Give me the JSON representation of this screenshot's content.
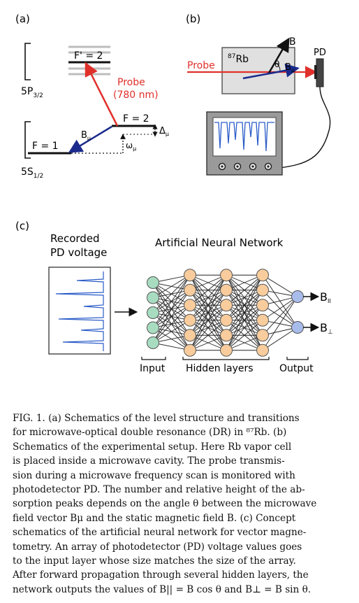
{
  "panel_a": {
    "label": "(a)",
    "upper_state": "5P",
    "upper_sub": "3/2",
    "lower_state": "5S",
    "lower_sub": "1/2",
    "level_fprime": "F' = 2",
    "level_f2": "F = 2",
    "level_f1": "F = 1",
    "probe_label_1": "Probe",
    "probe_label_2": "(780 nm)",
    "b_label": "B",
    "b_sub": "μ",
    "omega_label": "ω",
    "omega_sub": "μ",
    "delta_label": "Δ",
    "delta_sub": "μ"
  },
  "panel_b": {
    "label": "(b)",
    "probe_label": "Probe",
    "rb_sup": "87",
    "rb_label": "Rb",
    "b_label": "B",
    "theta_label": "θ",
    "bmu_label": "B",
    "bmu_sub": "μ",
    "pd_label": "PD"
  },
  "panel_c": {
    "label": "(c)",
    "recorded_line1": "Recorded",
    "recorded_line2": "PD voltage",
    "ann_title": "Artificial Neural Network",
    "input_label": "Input",
    "hidden_label": "Hidden layers",
    "output_label": "Output",
    "out1": "B",
    "out1_sub": "II",
    "out2": "B",
    "out2_sub": "⊥",
    "layer_sizes": [
      5,
      6,
      6,
      6,
      2
    ],
    "colors": {
      "input": "#a8dcc0",
      "hidden": "#f8cc9c",
      "output": "#a8bcec",
      "probe": "#e0302a",
      "field": "#1a2a8c",
      "trace": "#2a5cc8"
    }
  },
  "caption": {
    "line1": "FIG. 1.  (a) Schematics of the level structure and transitions",
    "line2": "for microwave-optical double resonance (DR) in ⁸⁷Rb.  (b)",
    "line3": "Schematics of the experimental setup.  Here Rb vapor cell",
    "line4": "is placed inside a microwave cavity.  The probe transmis-",
    "line5": "sion during a microwave frequency scan is monitored with",
    "line6": "photodetector PD. The number and relative height of the ab-",
    "line7": "sorption peaks depends on the angle θ between the microwave",
    "line8": "field vector Bμ and the static magnetic field B. (c) Concept",
    "line9": "schematics of the artificial neural network for vector magne-",
    "line10": "tometry. An array of photodetector (PD) voltage values goes",
    "line11": "to the input layer whose size matches the size of the array.",
    "line12": "After forward propagation through several hidden layers, the",
    "line13": "network outputs the values of B|| = B cos θ and B⊥ = B sin θ."
  }
}
